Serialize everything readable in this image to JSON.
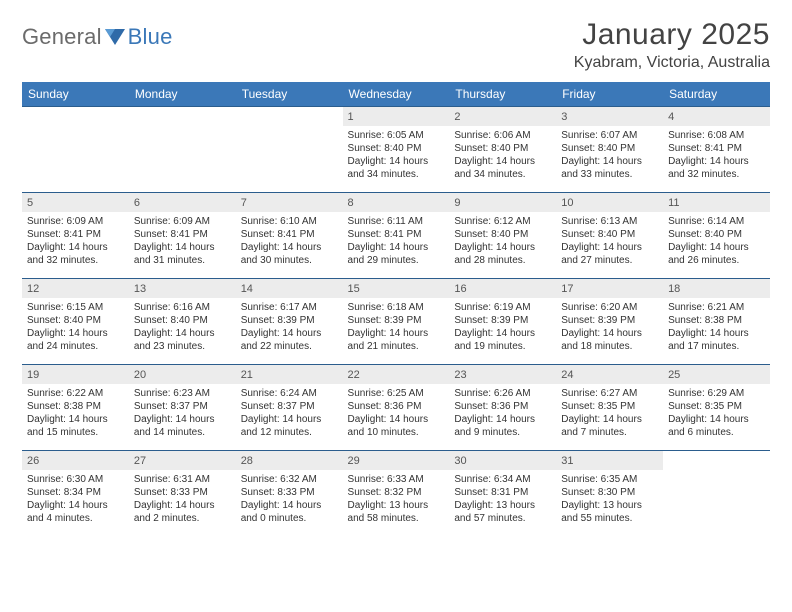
{
  "brand": {
    "word1": "General",
    "word2": "Blue"
  },
  "title": "January 2025",
  "location": "Kyabram, Victoria, Australia",
  "colors": {
    "header_bg": "#3b78b8",
    "header_text": "#ffffff",
    "row_border": "#2b5d8d",
    "daynum_bg": "#ececec",
    "text": "#333333",
    "logo_grey": "#6b6b6b",
    "logo_blue": "#3b78b8"
  },
  "day_headers": [
    "Sunday",
    "Monday",
    "Tuesday",
    "Wednesday",
    "Thursday",
    "Friday",
    "Saturday"
  ],
  "weeks": [
    [
      null,
      null,
      null,
      {
        "n": "1",
        "sunrise": "Sunrise: 6:05 AM",
        "sunset": "Sunset: 8:40 PM",
        "daylight": "Daylight: 14 hours and 34 minutes."
      },
      {
        "n": "2",
        "sunrise": "Sunrise: 6:06 AM",
        "sunset": "Sunset: 8:40 PM",
        "daylight": "Daylight: 14 hours and 34 minutes."
      },
      {
        "n": "3",
        "sunrise": "Sunrise: 6:07 AM",
        "sunset": "Sunset: 8:40 PM",
        "daylight": "Daylight: 14 hours and 33 minutes."
      },
      {
        "n": "4",
        "sunrise": "Sunrise: 6:08 AM",
        "sunset": "Sunset: 8:41 PM",
        "daylight": "Daylight: 14 hours and 32 minutes."
      }
    ],
    [
      {
        "n": "5",
        "sunrise": "Sunrise: 6:09 AM",
        "sunset": "Sunset: 8:41 PM",
        "daylight": "Daylight: 14 hours and 32 minutes."
      },
      {
        "n": "6",
        "sunrise": "Sunrise: 6:09 AM",
        "sunset": "Sunset: 8:41 PM",
        "daylight": "Daylight: 14 hours and 31 minutes."
      },
      {
        "n": "7",
        "sunrise": "Sunrise: 6:10 AM",
        "sunset": "Sunset: 8:41 PM",
        "daylight": "Daylight: 14 hours and 30 minutes."
      },
      {
        "n": "8",
        "sunrise": "Sunrise: 6:11 AM",
        "sunset": "Sunset: 8:41 PM",
        "daylight": "Daylight: 14 hours and 29 minutes."
      },
      {
        "n": "9",
        "sunrise": "Sunrise: 6:12 AM",
        "sunset": "Sunset: 8:40 PM",
        "daylight": "Daylight: 14 hours and 28 minutes."
      },
      {
        "n": "10",
        "sunrise": "Sunrise: 6:13 AM",
        "sunset": "Sunset: 8:40 PM",
        "daylight": "Daylight: 14 hours and 27 minutes."
      },
      {
        "n": "11",
        "sunrise": "Sunrise: 6:14 AM",
        "sunset": "Sunset: 8:40 PM",
        "daylight": "Daylight: 14 hours and 26 minutes."
      }
    ],
    [
      {
        "n": "12",
        "sunrise": "Sunrise: 6:15 AM",
        "sunset": "Sunset: 8:40 PM",
        "daylight": "Daylight: 14 hours and 24 minutes."
      },
      {
        "n": "13",
        "sunrise": "Sunrise: 6:16 AM",
        "sunset": "Sunset: 8:40 PM",
        "daylight": "Daylight: 14 hours and 23 minutes."
      },
      {
        "n": "14",
        "sunrise": "Sunrise: 6:17 AM",
        "sunset": "Sunset: 8:39 PM",
        "daylight": "Daylight: 14 hours and 22 minutes."
      },
      {
        "n": "15",
        "sunrise": "Sunrise: 6:18 AM",
        "sunset": "Sunset: 8:39 PM",
        "daylight": "Daylight: 14 hours and 21 minutes."
      },
      {
        "n": "16",
        "sunrise": "Sunrise: 6:19 AM",
        "sunset": "Sunset: 8:39 PM",
        "daylight": "Daylight: 14 hours and 19 minutes."
      },
      {
        "n": "17",
        "sunrise": "Sunrise: 6:20 AM",
        "sunset": "Sunset: 8:39 PM",
        "daylight": "Daylight: 14 hours and 18 minutes."
      },
      {
        "n": "18",
        "sunrise": "Sunrise: 6:21 AM",
        "sunset": "Sunset: 8:38 PM",
        "daylight": "Daylight: 14 hours and 17 minutes."
      }
    ],
    [
      {
        "n": "19",
        "sunrise": "Sunrise: 6:22 AM",
        "sunset": "Sunset: 8:38 PM",
        "daylight": "Daylight: 14 hours and 15 minutes."
      },
      {
        "n": "20",
        "sunrise": "Sunrise: 6:23 AM",
        "sunset": "Sunset: 8:37 PM",
        "daylight": "Daylight: 14 hours and 14 minutes."
      },
      {
        "n": "21",
        "sunrise": "Sunrise: 6:24 AM",
        "sunset": "Sunset: 8:37 PM",
        "daylight": "Daylight: 14 hours and 12 minutes."
      },
      {
        "n": "22",
        "sunrise": "Sunrise: 6:25 AM",
        "sunset": "Sunset: 8:36 PM",
        "daylight": "Daylight: 14 hours and 10 minutes."
      },
      {
        "n": "23",
        "sunrise": "Sunrise: 6:26 AM",
        "sunset": "Sunset: 8:36 PM",
        "daylight": "Daylight: 14 hours and 9 minutes."
      },
      {
        "n": "24",
        "sunrise": "Sunrise: 6:27 AM",
        "sunset": "Sunset: 8:35 PM",
        "daylight": "Daylight: 14 hours and 7 minutes."
      },
      {
        "n": "25",
        "sunrise": "Sunrise: 6:29 AM",
        "sunset": "Sunset: 8:35 PM",
        "daylight": "Daylight: 14 hours and 6 minutes."
      }
    ],
    [
      {
        "n": "26",
        "sunrise": "Sunrise: 6:30 AM",
        "sunset": "Sunset: 8:34 PM",
        "daylight": "Daylight: 14 hours and 4 minutes."
      },
      {
        "n": "27",
        "sunrise": "Sunrise: 6:31 AM",
        "sunset": "Sunset: 8:33 PM",
        "daylight": "Daylight: 14 hours and 2 minutes."
      },
      {
        "n": "28",
        "sunrise": "Sunrise: 6:32 AM",
        "sunset": "Sunset: 8:33 PM",
        "daylight": "Daylight: 14 hours and 0 minutes."
      },
      {
        "n": "29",
        "sunrise": "Sunrise: 6:33 AM",
        "sunset": "Sunset: 8:32 PM",
        "daylight": "Daylight: 13 hours and 58 minutes."
      },
      {
        "n": "30",
        "sunrise": "Sunrise: 6:34 AM",
        "sunset": "Sunset: 8:31 PM",
        "daylight": "Daylight: 13 hours and 57 minutes."
      },
      {
        "n": "31",
        "sunrise": "Sunrise: 6:35 AM",
        "sunset": "Sunset: 8:30 PM",
        "daylight": "Daylight: 13 hours and 55 minutes."
      },
      null
    ]
  ]
}
